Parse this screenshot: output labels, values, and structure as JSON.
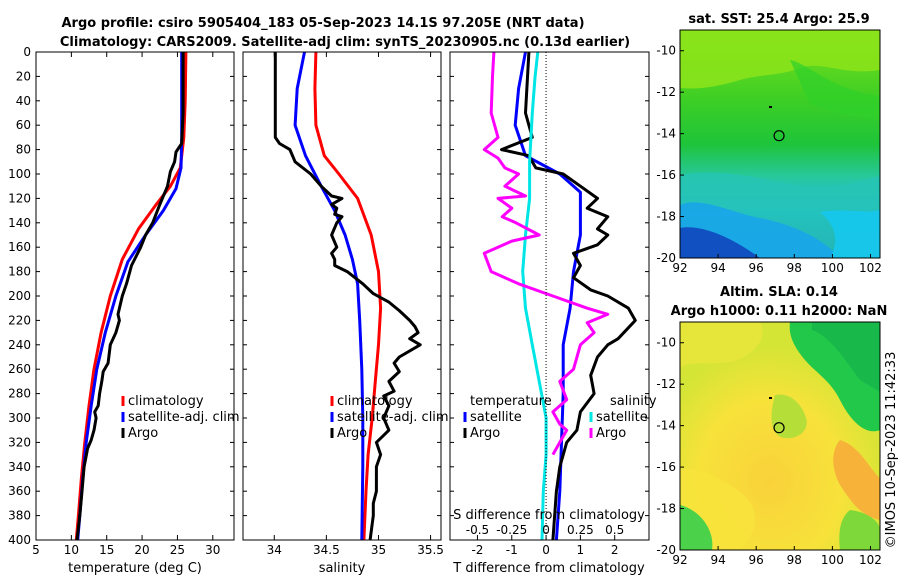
{
  "title": {
    "line1": "Argo profile: csiro 5905404_183 05-Sep-2023 14.1S 97.205E (NRT data)",
    "line2": "Climatology: CARS2009. Satellite-adj clim: synTS_20230905.nc (0.13d earlier)"
  },
  "colors": {
    "climatology": "#ff0000",
    "satellite": "#0000ff",
    "argo": "#000000",
    "sal_diff": "#ff00ff",
    "sal_sat_diff": "#00e5e5"
  },
  "chart_data": [
    {
      "type": "line",
      "name": "temperature",
      "xlabel": "temperature (deg C)",
      "ylabel": "",
      "xlim": [
        5,
        33
      ],
      "ylim": [
        400,
        0
      ],
      "xticks": [
        5,
        10,
        15,
        20,
        25,
        30
      ],
      "yticks": [
        0,
        20,
        40,
        60,
        80,
        100,
        120,
        140,
        160,
        180,
        200,
        220,
        240,
        260,
        280,
        300,
        320,
        340,
        360,
        380,
        400
      ],
      "legend": [
        "climatology",
        "satellite-adj. clim",
        "Argo"
      ],
      "series": [
        {
          "name": "climatology",
          "color": "#ff0000",
          "points": [
            [
              26.2,
              0
            ],
            [
              26.1,
              40
            ],
            [
              25.9,
              70
            ],
            [
              25.4,
              95
            ],
            [
              24,
              110
            ],
            [
              22,
              125
            ],
            [
              19.5,
              145
            ],
            [
              17.2,
              170
            ],
            [
              15.5,
              200
            ],
            [
              14.2,
              230
            ],
            [
              13.2,
              260
            ],
            [
              12.5,
              290
            ],
            [
              11.9,
              320
            ],
            [
              11.4,
              350
            ],
            [
              11,
              380
            ],
            [
              10.7,
              400
            ]
          ]
        },
        {
          "name": "satellite-adj. clim",
          "color": "#0000ff",
          "points": [
            [
              25.6,
              0
            ],
            [
              25.6,
              40
            ],
            [
              25.6,
              70
            ],
            [
              25.5,
              95
            ],
            [
              24.8,
              112
            ],
            [
              23,
              130
            ],
            [
              20.5,
              150
            ],
            [
              18,
              172
            ],
            [
              16.3,
              200
            ],
            [
              14.8,
              230
            ],
            [
              13.6,
              260
            ],
            [
              12.8,
              290
            ],
            [
              12.1,
              320
            ],
            [
              11.6,
              350
            ],
            [
              11.2,
              380
            ],
            [
              10.9,
              400
            ]
          ]
        },
        {
          "name": "Argo",
          "color": "#000000",
          "points": [
            [
              25.8,
              0
            ],
            [
              25.8,
              50
            ],
            [
              25.6,
              75
            ],
            [
              24.8,
              82
            ],
            [
              24.6,
              90
            ],
            [
              24,
              98
            ],
            [
              23.6,
              110
            ],
            [
              22.5,
              125
            ],
            [
              21.5,
              140
            ],
            [
              20.5,
              150
            ],
            [
              19.8,
              160
            ],
            [
              18.5,
              175
            ],
            [
              17.8,
              190
            ],
            [
              17.2,
              200
            ],
            [
              16.6,
              215
            ],
            [
              16.8,
              220
            ],
            [
              16.3,
              230
            ],
            [
              15.5,
              240
            ],
            [
              15.2,
              255
            ],
            [
              14.5,
              262
            ],
            [
              14.3,
              270
            ],
            [
              14,
              280
            ],
            [
              13.8,
              290
            ],
            [
              13.3,
              295
            ],
            [
              13.5,
              300
            ],
            [
              13.2,
              310
            ],
            [
              12.8,
              318
            ],
            [
              12.3,
              325
            ],
            [
              11.8,
              340
            ],
            [
              11.5,
              360
            ],
            [
              11.2,
              380
            ],
            [
              10.8,
              400
            ]
          ]
        }
      ]
    },
    {
      "type": "line",
      "name": "salinity",
      "xlabel": "salinity",
      "ylabel": "",
      "xlim": [
        33.7,
        35.6
      ],
      "ylim": [
        400,
        0
      ],
      "xticks": [
        34,
        34.5,
        35,
        35.5
      ],
      "legend": [
        "climatology",
        "satellite-adj. clim",
        "Argo"
      ],
      "series": [
        {
          "name": "climatology",
          "color": "#ff0000",
          "points": [
            [
              34.4,
              0
            ],
            [
              34.39,
              30
            ],
            [
              34.4,
              60
            ],
            [
              34.48,
              85
            ],
            [
              34.62,
              100
            ],
            [
              34.8,
              120
            ],
            [
              34.93,
              150
            ],
            [
              35,
              180
            ],
            [
              35.02,
              210
            ],
            [
              35,
              240
            ],
            [
              34.97,
              270
            ],
            [
              34.94,
              300
            ],
            [
              34.9,
              330
            ],
            [
              34.88,
              360
            ],
            [
              34.86,
              400
            ]
          ]
        },
        {
          "name": "satellite-adj. clim",
          "color": "#0000ff",
          "points": [
            [
              34.29,
              0
            ],
            [
              34.22,
              30
            ],
            [
              34.2,
              60
            ],
            [
              34.3,
              85
            ],
            [
              34.45,
              110
            ],
            [
              34.58,
              130
            ],
            [
              34.68,
              150
            ],
            [
              34.75,
              170
            ],
            [
              34.8,
              190
            ],
            [
              34.82,
              220
            ],
            [
              34.84,
              260
            ],
            [
              34.85,
              300
            ],
            [
              34.85,
              340
            ],
            [
              34.84,
              400
            ]
          ]
        },
        {
          "name": "Argo",
          "color": "#000000",
          "points": [
            [
              34.01,
              0
            ],
            [
              34.01,
              70
            ],
            [
              34.05,
              75
            ],
            [
              34.15,
              80
            ],
            [
              34.2,
              90
            ],
            [
              34.35,
              100
            ],
            [
              34.45,
              110
            ],
            [
              34.55,
              118
            ],
            [
              34.65,
              120
            ],
            [
              34.55,
              125
            ],
            [
              34.6,
              128
            ],
            [
              34.58,
              133
            ],
            [
              34.65,
              135
            ],
            [
              34.6,
              140
            ],
            [
              34.55,
              150
            ],
            [
              34.6,
              160
            ],
            [
              34.55,
              165
            ],
            [
              34.58,
              170
            ],
            [
              34.58,
              175
            ],
            [
              34.7,
              180
            ],
            [
              34.85,
              190
            ],
            [
              34.95,
              198
            ],
            [
              35.1,
              205
            ],
            [
              35.2,
              212
            ],
            [
              35.3,
              220
            ],
            [
              35.35,
              225
            ],
            [
              35.38,
              230
            ],
            [
              35.3,
              235
            ],
            [
              35.4,
              240
            ],
            [
              35.2,
              250
            ],
            [
              35.15,
              255
            ],
            [
              35.2,
              262
            ],
            [
              35.1,
              270
            ],
            [
              35.15,
              278
            ],
            [
              35.05,
              282
            ],
            [
              35.1,
              290
            ],
            [
              35.05,
              300
            ],
            [
              35.1,
              310
            ],
            [
              34.98,
              320
            ],
            [
              35.02,
              330
            ],
            [
              34.98,
              340
            ],
            [
              34.98,
              360
            ],
            [
              34.95,
              370
            ],
            [
              34.95,
              380
            ],
            [
              34.92,
              400
            ]
          ]
        }
      ]
    },
    {
      "type": "line",
      "name": "differences",
      "xlabel": "T difference from climatology",
      "x2label": "S difference from climatology",
      "xlim": [
        -2.8,
        3
      ],
      "x2lim": [
        -0.7,
        0.75
      ],
      "ylim": [
        400,
        0
      ],
      "xticks": [
        -2,
        -1,
        0,
        1,
        2
      ],
      "x2ticks": [
        -0.5,
        -0.25,
        0,
        0.25,
        0.5
      ],
      "x2ticklabels": [
        "-0.5",
        "-0.25",
        "0",
        "0.25",
        "0.5"
      ],
      "legend_left_title": "temperature",
      "legend_right_title": "salinity",
      "legend": [
        "satellite",
        "Argo",
        "satellite",
        "Argo"
      ],
      "series": [
        {
          "name": "T satellite - clim",
          "axis": "T",
          "color": "#0000ff",
          "points": [
            [
              -0.6,
              0
            ],
            [
              -0.8,
              30
            ],
            [
              -0.9,
              60
            ],
            [
              -0.6,
              85
            ],
            [
              0.4,
              100
            ],
            [
              1,
              115
            ],
            [
              1,
              150
            ],
            [
              0.8,
              180
            ],
            [
              0.7,
              210
            ],
            [
              0.5,
              240
            ],
            [
              0.5,
              280
            ],
            [
              0.45,
              320
            ],
            [
              0.4,
              360
            ],
            [
              0.3,
              400
            ]
          ]
        },
        {
          "name": "T Argo - clim",
          "axis": "T",
          "color": "#000000",
          "points": [
            [
              -0.5,
              0
            ],
            [
              -0.6,
              50
            ],
            [
              -0.4,
              70
            ],
            [
              -1.3,
              80
            ],
            [
              -0.5,
              85
            ],
            [
              -0.3,
              95
            ],
            [
              0.5,
              100
            ],
            [
              1,
              110
            ],
            [
              1.5,
              120
            ],
            [
              1.2,
              128
            ],
            [
              1.8,
              135
            ],
            [
              1.5,
              145
            ],
            [
              1.8,
              150
            ],
            [
              1.5,
              158
            ],
            [
              0.8,
              165
            ],
            [
              1,
              175
            ],
            [
              0.8,
              185
            ],
            [
              1.3,
              195
            ],
            [
              1.8,
              200
            ],
            [
              2.4,
              210
            ],
            [
              2.6,
              220
            ],
            [
              2.1,
              235
            ],
            [
              1.8,
              240
            ],
            [
              1.5,
              250
            ],
            [
              1.3,
              265
            ],
            [
              1.4,
              280
            ],
            [
              1,
              295
            ],
            [
              0.9,
              310
            ],
            [
              0.6,
              320
            ],
            [
              0.4,
              340
            ],
            [
              0.3,
              360
            ],
            [
              0.2,
              400
            ]
          ]
        },
        {
          "name": "S satellite - clim",
          "axis": "S",
          "color": "#00e5e5",
          "points": [
            [
              -0.06,
              0
            ],
            [
              -0.08,
              20
            ],
            [
              -0.1,
              50
            ],
            [
              -0.12,
              90
            ],
            [
              -0.12,
              120
            ],
            [
              -0.15,
              150
            ],
            [
              -0.17,
              180
            ],
            [
              -0.15,
              210
            ],
            [
              -0.1,
              240
            ],
            [
              -0.05,
              270
            ],
            [
              0,
              300
            ],
            [
              0,
              330
            ],
            [
              -0.02,
              360
            ],
            [
              -0.03,
              400
            ]
          ]
        },
        {
          "name": "S Argo - clim",
          "axis": "S",
          "color": "#ff00ff",
          "points": [
            [
              -0.38,
              0
            ],
            [
              -0.39,
              20
            ],
            [
              -0.4,
              50
            ],
            [
              -0.35,
              70
            ],
            [
              -0.45,
              80
            ],
            [
              -0.35,
              87
            ],
            [
              -0.3,
              95
            ],
            [
              -0.2,
              100
            ],
            [
              -0.3,
              110
            ],
            [
              -0.15,
              118
            ],
            [
              -0.35,
              120
            ],
            [
              -0.25,
              128
            ],
            [
              -0.32,
              135
            ],
            [
              -0.22,
              140
            ],
            [
              -0.05,
              150
            ],
            [
              -0.25,
              155
            ],
            [
              -0.45,
              165
            ],
            [
              -0.4,
              180
            ],
            [
              -0.2,
              190
            ],
            [
              0.05,
              200
            ],
            [
              0.3,
              210
            ],
            [
              0.45,
              215
            ],
            [
              0.3,
              222
            ],
            [
              0.35,
              230
            ],
            [
              0.25,
              240
            ],
            [
              0.2,
              260
            ],
            [
              0.1,
              270
            ],
            [
              0.15,
              285
            ],
            [
              0.05,
              295
            ],
            [
              0.1,
              305
            ],
            [
              0.15,
              310
            ],
            [
              0.1,
              320
            ],
            [
              0.05,
              330
            ]
          ]
        }
      ]
    }
  ],
  "maps": {
    "sst": {
      "title": "sat. SST: 25.4 Argo: 25.9",
      "xticks": [
        "92",
        "94",
        "96",
        "98",
        "100",
        "102"
      ],
      "yticks": [
        "-10",
        "-12",
        "-14",
        "-16",
        "-18",
        "-20"
      ],
      "marker": {
        "lon": 97.2,
        "lat": -14.1
      }
    },
    "sla": {
      "title1": "Altim. SLA: 0.14",
      "title2": "Argo h1000: 0.11 h2000: NaN",
      "xticks": [
        "92",
        "94",
        "96",
        "98",
        "100",
        "102"
      ],
      "yticks": [
        "-10",
        "-12",
        "-14",
        "-16",
        "-18",
        "-20"
      ],
      "marker": {
        "lon": 97.2,
        "lat": -14.1
      }
    }
  },
  "timestamp": "©IMOS 10-Sep-2023 11:42:33"
}
